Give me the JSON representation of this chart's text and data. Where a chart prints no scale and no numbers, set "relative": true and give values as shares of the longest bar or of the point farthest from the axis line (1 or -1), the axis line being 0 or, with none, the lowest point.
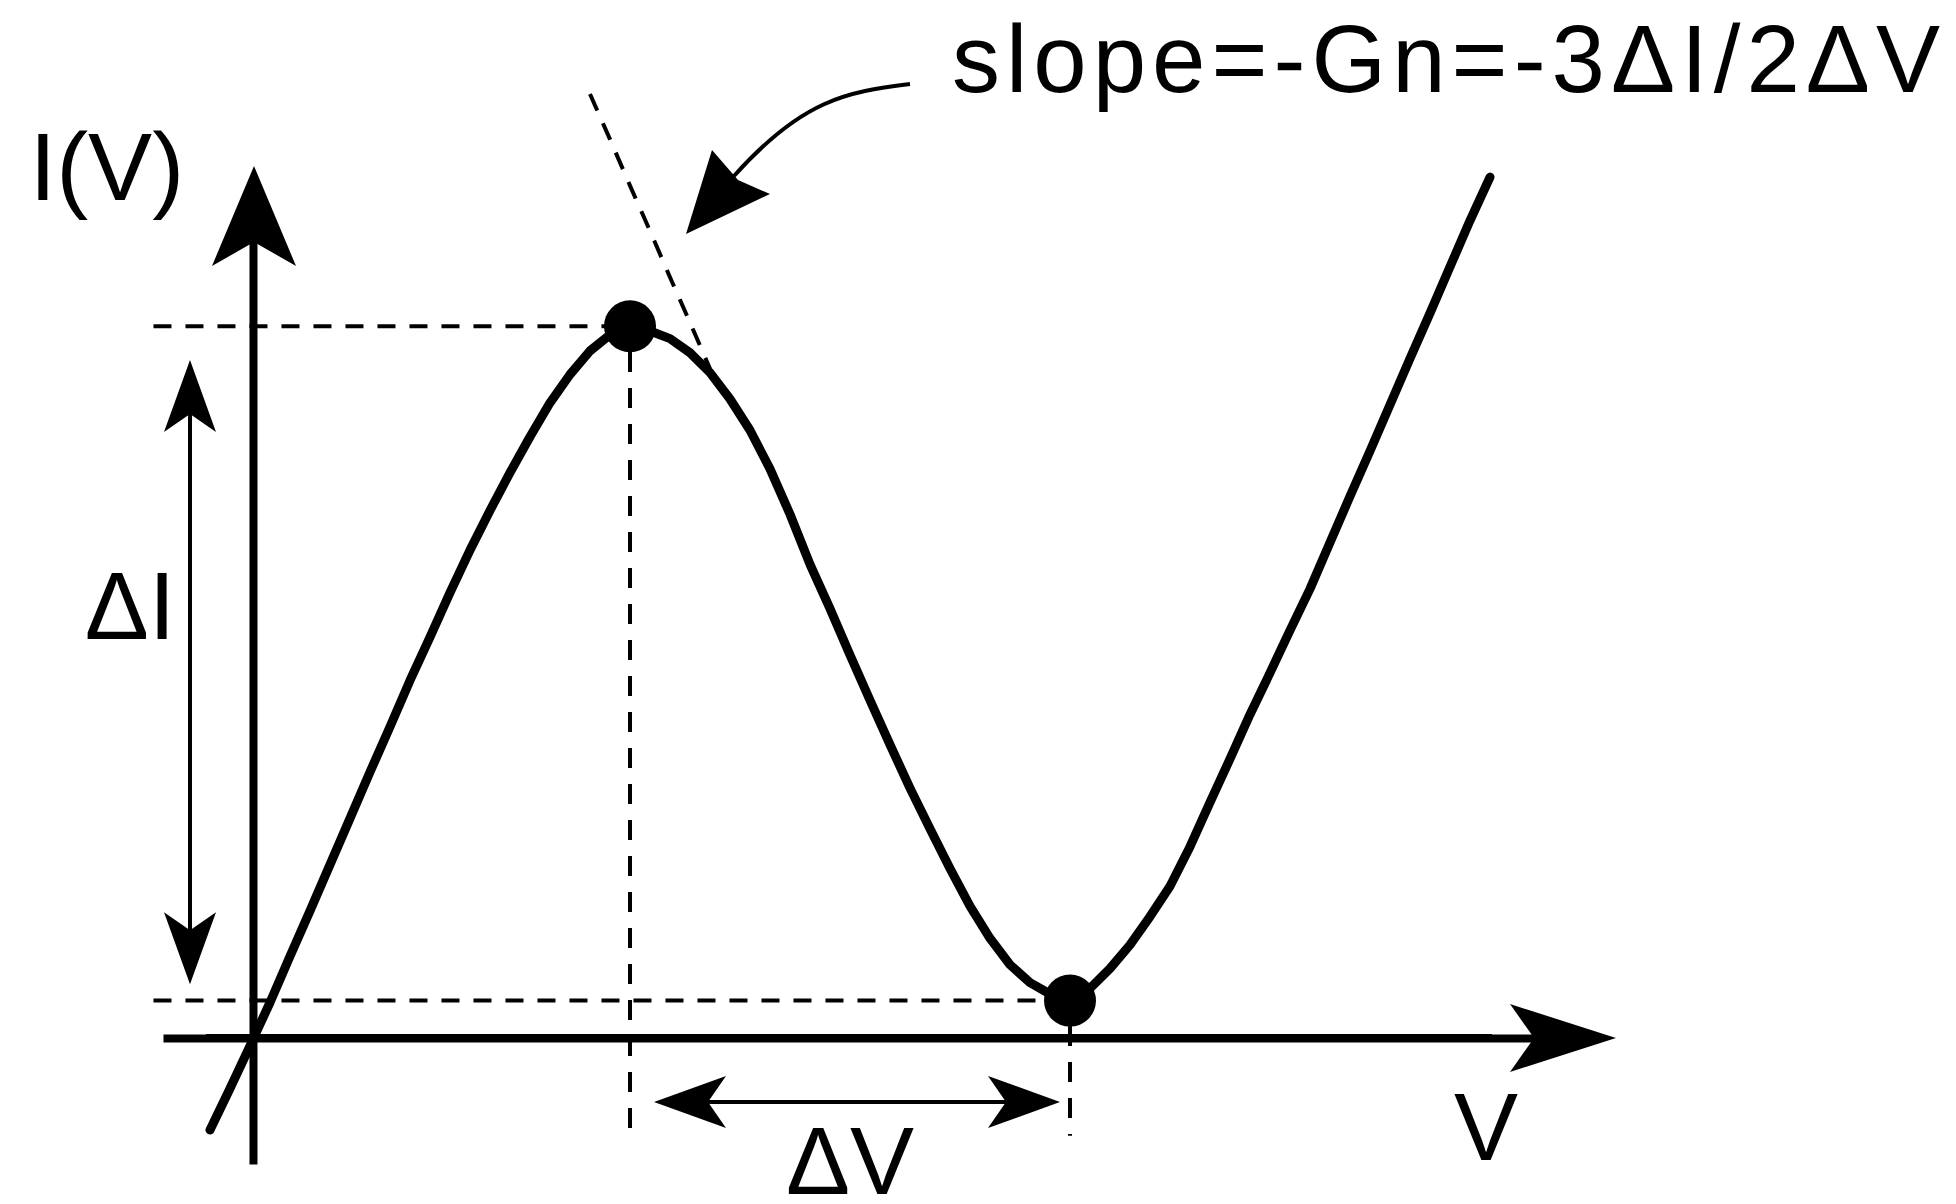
{
  "chart_data": {
    "type": "line",
    "relative": true,
    "xlabel": "V",
    "ylabel": "I(V)",
    "annotations": [
      "slope=-Gn=-3ΔI/2ΔV",
      "ΔI",
      "ΔV"
    ],
    "categories": [
      null,
      null,
      null,
      null,
      null,
      null,
      null,
      null,
      null,
      null,
      null,
      null,
      null,
      null,
      null,
      null,
      null,
      null,
      null,
      null,
      null,
      null,
      null,
      null,
      null,
      null,
      null,
      null,
      null,
      null,
      null,
      null,
      null,
      null,
      null,
      null,
      null,
      null,
      null,
      null,
      null,
      null,
      null,
      null,
      null,
      null,
      null,
      null,
      null,
      null,
      null,
      null,
      null,
      null,
      null,
      null,
      null,
      null,
      null,
      null,
      null,
      null,
      null,
      null,
      null
    ],
    "series": [
      {
        "type": "line",
        "color": "#000000",
        "values": [
          -0.097,
          -0.053,
          -0.008,
          0.038,
          0.087,
          0.135,
          0.184,
          0.233,
          0.282,
          0.33,
          0.379,
          0.425,
          0.472,
          0.517,
          0.559,
          0.599,
          0.637,
          0.673,
          0.703,
          0.728,
          0.745,
          0.754,
          0.749,
          0.741,
          0.726,
          0.705,
          0.677,
          0.644,
          0.603,
          0.555,
          0.502,
          0.455,
          0.406,
          0.358,
          0.311,
          0.265,
          0.222,
          0.18,
          0.14,
          0.106,
          0.078,
          0.059,
          0.047,
          0.04,
          0.053,
          0.074,
          0.099,
          0.129,
          0.161,
          0.203,
          0.25,
          0.296,
          0.343,
          0.387,
          0.432,
          0.476,
          0.525,
          0.574,
          0.622,
          0.671,
          0.72,
          0.768,
          0.817,
          0.866,
          0.912
        ]
      },
      {
        "type": "line",
        "color": "#000000",
        "line_style": "dashed",
        "values": [
          null,
          null,
          null,
          null,
          null,
          null,
          null,
          null,
          null,
          null,
          null,
          null,
          null,
          null,
          null,
          null,
          null,
          null,
          null,
          1.0,
          0.952,
          0.903,
          0.855,
          0.806,
          0.758,
          0.709,
          null,
          null,
          null,
          null,
          null,
          null,
          null,
          null,
          null,
          null,
          null,
          null,
          null,
          null,
          null,
          null,
          null,
          null,
          null,
          null,
          null,
          null,
          null,
          null,
          null,
          null,
          null,
          null,
          null,
          null,
          null,
          null,
          null,
          null,
          null,
          null,
          null,
          null,
          null
        ]
      },
      {
        "type": "line",
        "color": "#000000",
        "marker": "circle",
        "values": [
          null,
          null,
          null,
          null,
          null,
          null,
          null,
          null,
          null,
          null,
          null,
          null,
          null,
          null,
          null,
          null,
          null,
          null,
          null,
          null,
          null,
          0.754,
          null,
          null,
          null,
          null,
          null,
          null,
          null,
          null,
          null,
          null,
          null,
          null,
          null,
          null,
          null,
          null,
          null,
          null,
          null,
          null,
          null,
          0.04,
          null,
          null,
          null,
          null,
          null,
          null,
          null,
          null,
          null,
          null,
          null,
          null,
          null,
          null,
          null,
          null,
          null,
          null,
          null,
          null,
          null
        ]
      }
    ],
    "ref_lines": [
      {
        "axis": "y",
        "value": 0.754,
        "color": "#000000",
        "line_style": "dashed"
      },
      {
        "axis": "y",
        "value": 0.04,
        "color": "#000000",
        "line_style": "dashed"
      }
    ]
  }
}
